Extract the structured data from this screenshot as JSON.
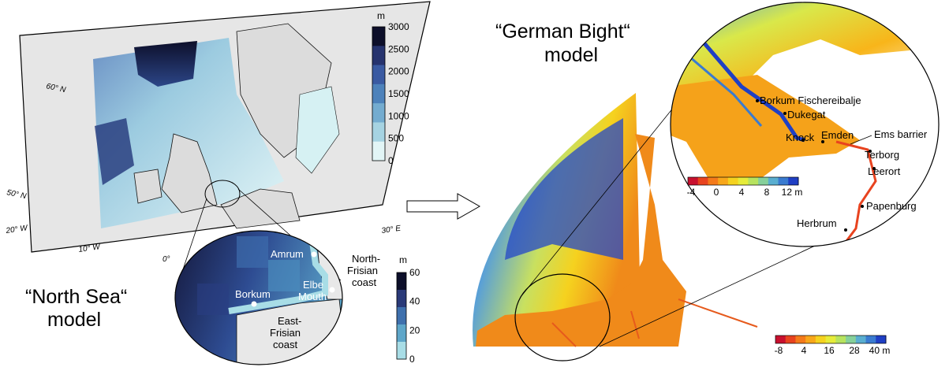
{
  "north_sea": {
    "title_line1": "“North Sea“",
    "title_line2": "model",
    "lat_labels": [
      "60° N",
      "50° N"
    ],
    "lon_labels": [
      "20° W",
      "10° W",
      "0°",
      "30° E"
    ],
    "depth_scale": {
      "unit": "m",
      "ticks": [
        "3000",
        "2500",
        "2000",
        "1500",
        "1000",
        "500",
        "0"
      ],
      "colors": [
        "#0d0f2a",
        "#26336e",
        "#3a5aa2",
        "#4d82bb",
        "#74acd0",
        "#a6d3e2",
        "#e2f5f6"
      ]
    },
    "inset_scale": {
      "unit": "m",
      "ticks": [
        "60",
        "40",
        "20",
        "0"
      ],
      "colors": [
        "#0d0f2a",
        "#2a3a78",
        "#3f70ad",
        "#5ea6c9",
        "#a8dde6"
      ]
    },
    "places": [
      "Amrum",
      "Borkum",
      "Elbe",
      "Mouth",
      "North-",
      "Frisian",
      "coast",
      "East-",
      "Frisian",
      "coast"
    ]
  },
  "german_bight": {
    "title_line1": "“German Bight“",
    "title_line2": "model",
    "scale": {
      "ticks": [
        "-8",
        "4",
        "16",
        "28",
        "40 m"
      ],
      "colors": [
        "#c8102e",
        "#e8431f",
        "#f47a1a",
        "#f8a71a",
        "#f5d21f",
        "#e6ec3a",
        "#b7e35f",
        "#86d09a",
        "#5aaed0",
        "#3a7bd0",
        "#1f3fc4"
      ]
    }
  },
  "ems_detail": {
    "places": [
      "Borkum Fischereibalje",
      "Dukegat",
      "Knock",
      "Emden",
      "Ems barrier",
      "Terborg",
      "Leerort",
      "Papenburg",
      "Herbrum"
    ],
    "scale": {
      "ticks": [
        "-4",
        "0",
        "4",
        "8",
        "12 m"
      ],
      "colors": [
        "#c8102e",
        "#e8431f",
        "#f47a1a",
        "#f8a71a",
        "#f5d21f",
        "#e6ec3a",
        "#b7e35f",
        "#86d09a",
        "#5aaed0",
        "#3a7bd0",
        "#1f3fc4"
      ]
    }
  }
}
